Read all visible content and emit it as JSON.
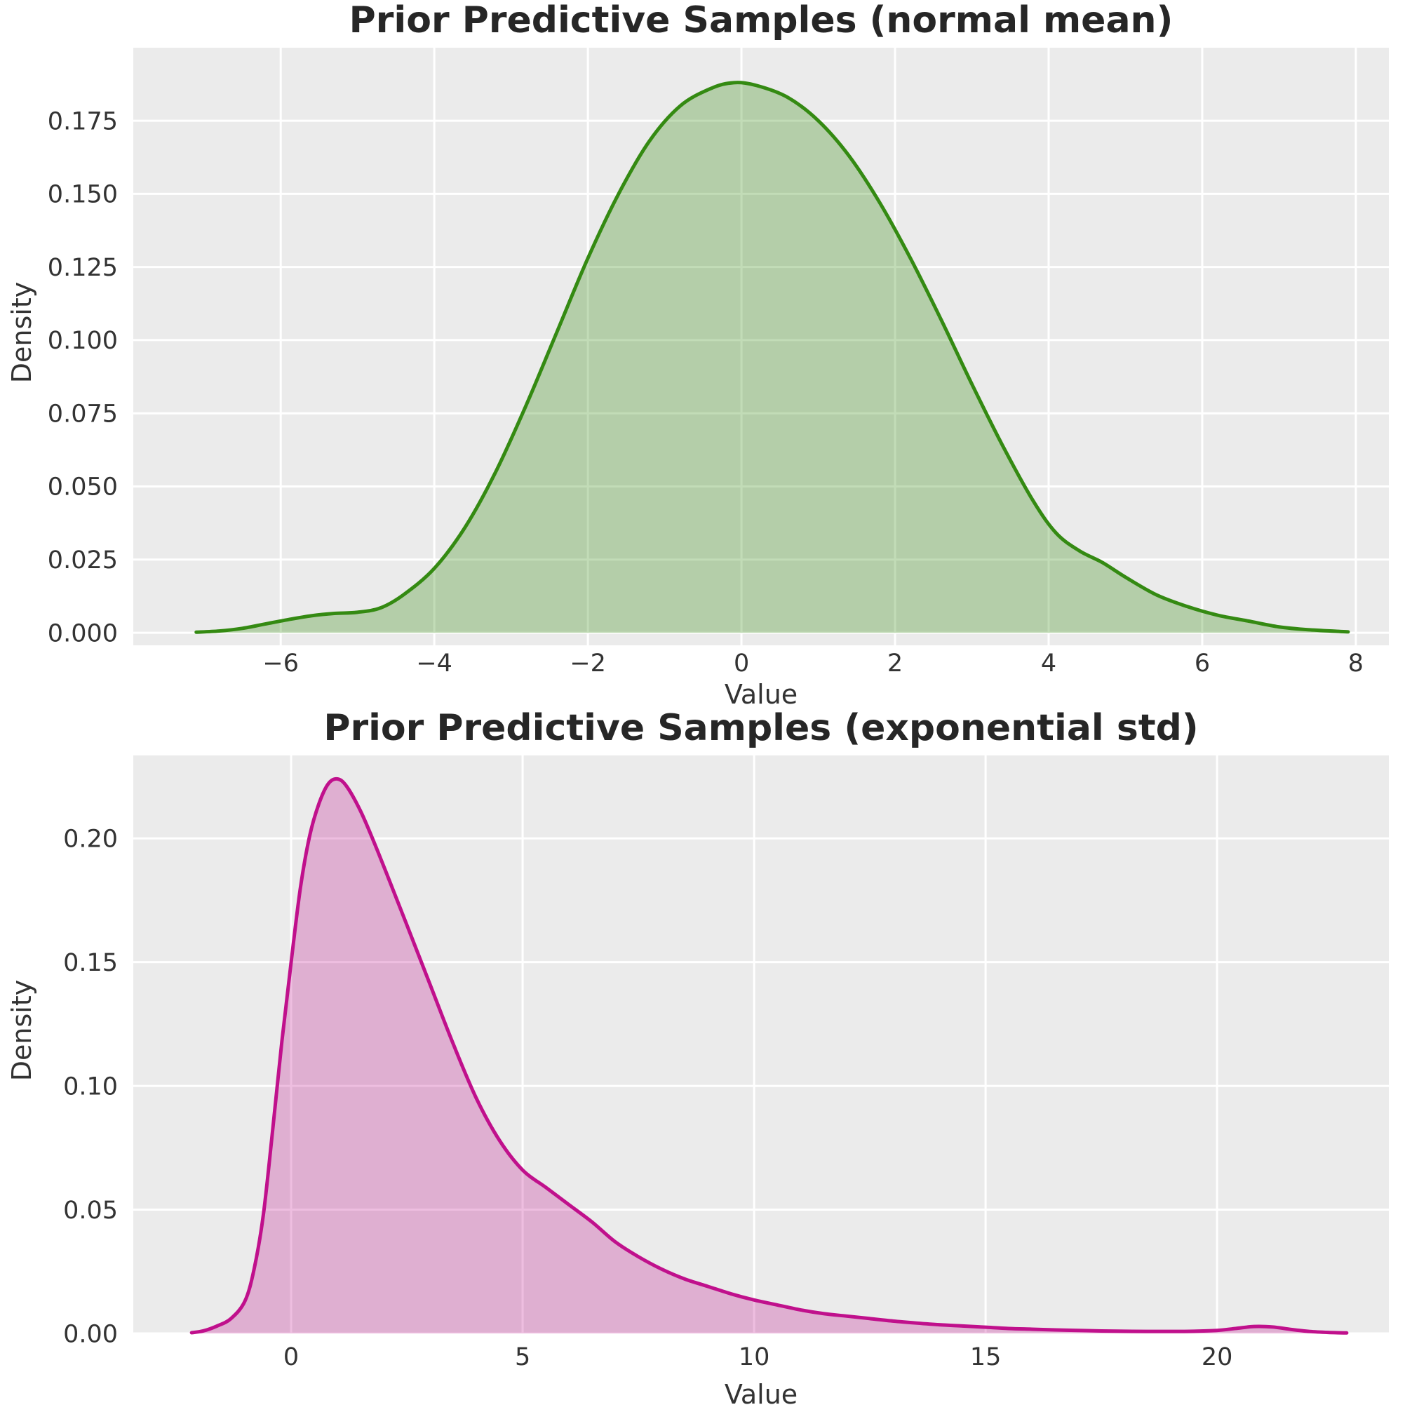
{
  "figure": {
    "background": "#ffffff",
    "plot_background": "#ebebeb",
    "grid_color": "#ffffff",
    "tick_text_color": "#333333",
    "title_text_color": "#262626"
  },
  "chart_data": [
    {
      "type": "area",
      "title": "Prior Predictive Samples (normal mean)",
      "xlabel": "Value",
      "ylabel": "Density",
      "legend": "none",
      "grid": true,
      "line_color": "#348a12",
      "fill_color": "rgba(52,138,18,0.30)",
      "xlim": [
        -7.92,
        8.43
      ],
      "ylim": [
        -0.0043,
        0.19995
      ],
      "xticks": [
        -6,
        -4,
        -2,
        0,
        2,
        4,
        6,
        8
      ],
      "xtick_labels": [
        "−6",
        "−4",
        "−2",
        "0",
        "2",
        "4",
        "6",
        "8"
      ],
      "yticks": [
        0.0,
        0.025,
        0.05,
        0.075,
        0.1,
        0.125,
        0.15,
        0.175
      ],
      "ytick_labels": [
        "0.000",
        "0.025",
        "0.050",
        "0.075",
        "0.100",
        "0.125",
        "0.150",
        "0.175"
      ],
      "peak": {
        "x": -0.1,
        "density": 0.188
      },
      "points": [
        [
          -7.1,
          0.0002
        ],
        [
          -6.8,
          0.0006
        ],
        [
          -6.5,
          0.0015
        ],
        [
          -6.2,
          0.003
        ],
        [
          -5.9,
          0.0045
        ],
        [
          -5.6,
          0.0058
        ],
        [
          -5.3,
          0.0066
        ],
        [
          -5.0,
          0.007
        ],
        [
          -4.7,
          0.0085
        ],
        [
          -4.4,
          0.013
        ],
        [
          -4.0,
          0.022
        ],
        [
          -3.6,
          0.036
        ],
        [
          -3.2,
          0.055
        ],
        [
          -2.8,
          0.078
        ],
        [
          -2.4,
          0.103
        ],
        [
          -2.0,
          0.128
        ],
        [
          -1.6,
          0.15
        ],
        [
          -1.2,
          0.168
        ],
        [
          -0.8,
          0.18
        ],
        [
          -0.4,
          0.186
        ],
        [
          -0.1,
          0.188
        ],
        [
          0.2,
          0.187
        ],
        [
          0.6,
          0.183
        ],
        [
          1.0,
          0.175
        ],
        [
          1.4,
          0.163
        ],
        [
          1.8,
          0.147
        ],
        [
          2.2,
          0.128
        ],
        [
          2.6,
          0.107
        ],
        [
          3.0,
          0.085
        ],
        [
          3.4,
          0.064
        ],
        [
          3.8,
          0.045
        ],
        [
          4.1,
          0.034
        ],
        [
          4.4,
          0.028
        ],
        [
          4.7,
          0.024
        ],
        [
          5.0,
          0.019
        ],
        [
          5.4,
          0.013
        ],
        [
          5.8,
          0.009
        ],
        [
          6.2,
          0.006
        ],
        [
          6.6,
          0.004
        ],
        [
          7.0,
          0.002
        ],
        [
          7.4,
          0.001
        ],
        [
          7.9,
          0.0003
        ]
      ]
    },
    {
      "type": "area",
      "title": "Prior Predictive Samples (exponential std)",
      "xlabel": "Value",
      "ylabel": "Density",
      "legend": "none",
      "grid": true,
      "line_color": "#c0108c",
      "fill_color": "rgba(192,16,140,0.27)",
      "xlim": [
        -3.41,
        23.71
      ],
      "ylim": [
        0.0,
        0.2335
      ],
      "xticks": [
        0,
        5,
        10,
        15,
        20
      ],
      "xtick_labels": [
        "0",
        "5",
        "10",
        "15",
        "20"
      ],
      "yticks": [
        0.0,
        0.05,
        0.1,
        0.15,
        0.2
      ],
      "ytick_labels": [
        "0.00",
        "0.05",
        "0.10",
        "0.15",
        "0.20"
      ],
      "peak": {
        "x": 1.0,
        "density": 0.224
      },
      "points": [
        [
          -2.15,
          0.0003
        ],
        [
          -1.9,
          0.001
        ],
        [
          -1.6,
          0.003
        ],
        [
          -1.3,
          0.006
        ],
        [
          -1.0,
          0.013
        ],
        [
          -0.8,
          0.026
        ],
        [
          -0.6,
          0.048
        ],
        [
          -0.4,
          0.082
        ],
        [
          -0.2,
          0.118
        ],
        [
          0.0,
          0.15
        ],
        [
          0.2,
          0.18
        ],
        [
          0.4,
          0.201
        ],
        [
          0.6,
          0.214
        ],
        [
          0.8,
          0.222
        ],
        [
          1.0,
          0.224
        ],
        [
          1.2,
          0.221
        ],
        [
          1.5,
          0.211
        ],
        [
          1.8,
          0.198
        ],
        [
          2.1,
          0.184
        ],
        [
          2.5,
          0.165
        ],
        [
          3.0,
          0.141
        ],
        [
          3.5,
          0.117
        ],
        [
          4.0,
          0.095
        ],
        [
          4.5,
          0.078
        ],
        [
          5.0,
          0.066
        ],
        [
          5.5,
          0.059
        ],
        [
          6.0,
          0.052
        ],
        [
          6.5,
          0.045
        ],
        [
          7.0,
          0.037
        ],
        [
          7.5,
          0.031
        ],
        [
          8.0,
          0.026
        ],
        [
          8.5,
          0.022
        ],
        [
          9.0,
          0.019
        ],
        [
          9.5,
          0.016
        ],
        [
          10.0,
          0.0135
        ],
        [
          10.5,
          0.0115
        ],
        [
          11.0,
          0.0095
        ],
        [
          11.5,
          0.008
        ],
        [
          12.0,
          0.007
        ],
        [
          12.5,
          0.006
        ],
        [
          13.0,
          0.005
        ],
        [
          13.5,
          0.0042
        ],
        [
          14.0,
          0.0035
        ],
        [
          14.5,
          0.003
        ],
        [
          15.0,
          0.0025
        ],
        [
          15.5,
          0.002
        ],
        [
          16.0,
          0.0017
        ],
        [
          16.5,
          0.0014
        ],
        [
          17.0,
          0.0012
        ],
        [
          17.5,
          0.001
        ],
        [
          18.0,
          0.0009
        ],
        [
          18.5,
          0.0008
        ],
        [
          19.0,
          0.0008
        ],
        [
          19.5,
          0.0009
        ],
        [
          20.0,
          0.0012
        ],
        [
          20.4,
          0.002
        ],
        [
          20.8,
          0.0028
        ],
        [
          21.2,
          0.0026
        ],
        [
          21.6,
          0.0016
        ],
        [
          22.0,
          0.0008
        ],
        [
          22.4,
          0.0004
        ],
        [
          22.8,
          0.0002
        ]
      ]
    }
  ]
}
